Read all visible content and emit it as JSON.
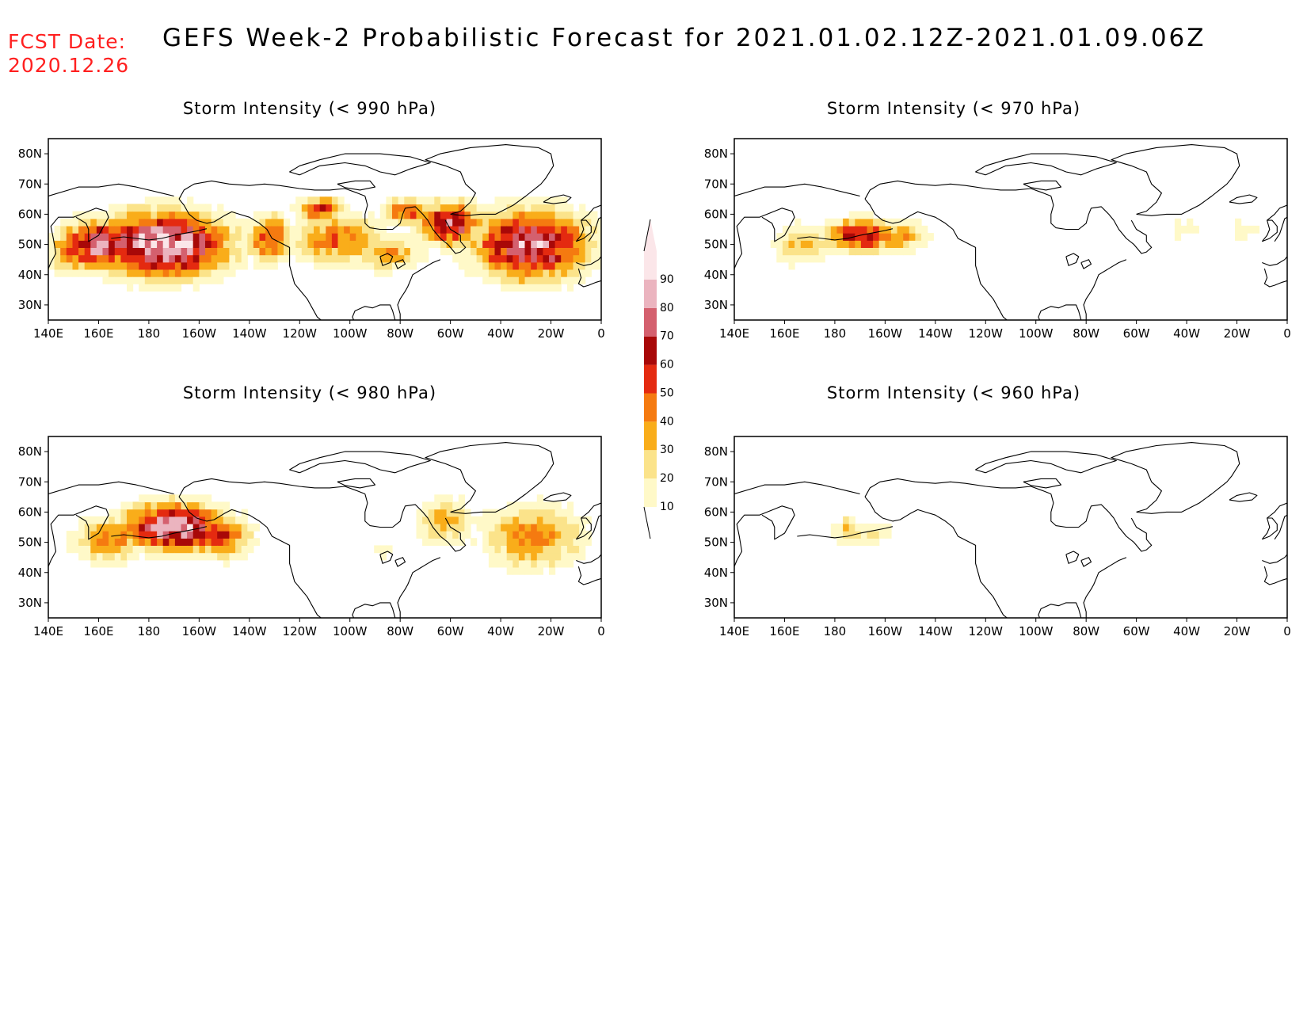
{
  "header": {
    "fcst_label": "FCST Date:",
    "fcst_date": "2020.12.26",
    "title": "GEFS Week-2 Probabilistic Forecast for 2021.01.02.12Z-2021.01.09.06Z"
  },
  "colors": {
    "bins": [
      "#fff9c8",
      "#fbe38a",
      "#f9ad1a",
      "#f57a10",
      "#e42a10",
      "#a80808",
      "#d4606e",
      "#ebb4bf",
      "#fbe6e9"
    ],
    "coast": "#000000"
  },
  "colorbar": {
    "levels": [
      "10",
      "20",
      "30",
      "40",
      "50",
      "60",
      "70",
      "80",
      "90"
    ]
  },
  "axes": {
    "lat_labels": [
      "80N",
      "70N",
      "60N",
      "50N",
      "40N",
      "30N"
    ],
    "lon_labels": [
      "140E",
      "160E",
      "180",
      "160W",
      "140W",
      "120W",
      "100W",
      "80W",
      "60W",
      "40W",
      "20W",
      "0"
    ]
  },
  "chart_data": {
    "type": "heatmap",
    "panels": [
      {
        "title": "Storm Intensity (< 990 hPa)",
        "blobs": [
          {
            "lon": 185,
            "lat": 50,
            "rlon": 30,
            "rlat": 12,
            "peak": 95
          },
          {
            "lon": 160,
            "lat": 50,
            "rlon": 18,
            "rlat": 9,
            "peak": 78
          },
          {
            "lon": 148,
            "lat": 48,
            "rlon": 9,
            "rlat": 9,
            "peak": 45
          },
          {
            "lon": 228,
            "lat": 52,
            "rlon": 10,
            "rlat": 9,
            "peak": 55
          },
          {
            "lon": 255,
            "lat": 52,
            "rlon": 20,
            "rlat": 10,
            "peak": 45
          },
          {
            "lon": 275,
            "lat": 47,
            "rlon": 15,
            "rlat": 7,
            "peak": 38
          },
          {
            "lon": 300,
            "lat": 57,
            "rlon": 14,
            "rlat": 8,
            "peak": 74
          },
          {
            "lon": 332,
            "lat": 50,
            "rlon": 26,
            "rlat": 13,
            "peak": 82
          },
          {
            "lon": 248,
            "lat": 62,
            "rlon": 10,
            "rlat": 4,
            "peak": 62
          },
          {
            "lon": 283,
            "lat": 61,
            "rlon": 10,
            "rlat": 5,
            "peak": 55
          }
        ]
      },
      {
        "title": "Storm Intensity (< 970 hPa)",
        "blobs": [
          {
            "lon": 190,
            "lat": 53,
            "rlon": 16,
            "rlat": 6,
            "peak": 66
          },
          {
            "lon": 168,
            "lat": 50,
            "rlon": 15,
            "rlat": 8,
            "peak": 30
          },
          {
            "lon": 205,
            "lat": 53,
            "rlon": 14,
            "rlat": 6,
            "peak": 38
          },
          {
            "lon": 320,
            "lat": 55,
            "rlon": 12,
            "rlat": 5,
            "peak": 15
          },
          {
            "lon": 342,
            "lat": 55,
            "rlon": 10,
            "rlat": 6,
            "peak": 15
          }
        ]
      },
      {
        "title": "Storm Intensity (< 980 hPa)",
        "blobs": [
          {
            "lon": 190,
            "lat": 55,
            "rlon": 24,
            "rlat": 9,
            "peak": 86
          },
          {
            "lon": 165,
            "lat": 51,
            "rlon": 17,
            "rlat": 9,
            "peak": 42
          },
          {
            "lon": 208,
            "lat": 52,
            "rlon": 14,
            "rlat": 8,
            "peak": 55
          },
          {
            "lon": 298,
            "lat": 57,
            "rlon": 13,
            "rlat": 9,
            "peak": 36
          },
          {
            "lon": 333,
            "lat": 52,
            "rlon": 22,
            "rlat": 12,
            "peak": 45
          },
          {
            "lon": 272,
            "lat": 47,
            "rlon": 6,
            "rlat": 3,
            "peak": 16
          }
        ]
      },
      {
        "title": "Storm Intensity (< 960 hPa)",
        "blobs": [
          {
            "lon": 190,
            "lat": 53,
            "rlon": 15,
            "rlat": 5,
            "peak": 24
          },
          {
            "lon": 185,
            "lat": 56,
            "rlon": 4,
            "rlat": 3,
            "peak": 35
          }
        ]
      }
    ]
  }
}
